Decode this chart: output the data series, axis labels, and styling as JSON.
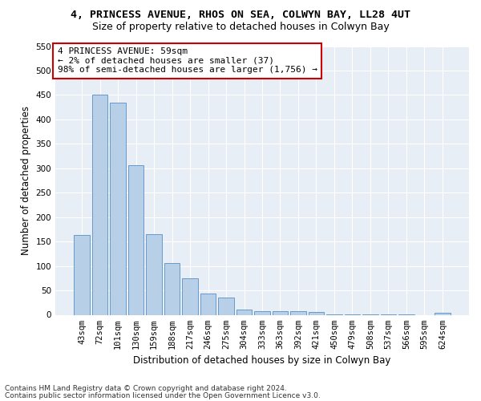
{
  "title": "4, PRINCESS AVENUE, RHOS ON SEA, COLWYN BAY, LL28 4UT",
  "subtitle": "Size of property relative to detached houses in Colwyn Bay",
  "xlabel": "Distribution of detached houses by size in Colwyn Bay",
  "ylabel": "Number of detached properties",
  "categories": [
    "43sqm",
    "72sqm",
    "101sqm",
    "130sqm",
    "159sqm",
    "188sqm",
    "217sqm",
    "246sqm",
    "275sqm",
    "304sqm",
    "333sqm",
    "363sqm",
    "392sqm",
    "421sqm",
    "450sqm",
    "479sqm",
    "508sqm",
    "537sqm",
    "566sqm",
    "595sqm",
    "624sqm"
  ],
  "values": [
    163,
    450,
    435,
    306,
    165,
    106,
    75,
    44,
    35,
    10,
    7,
    7,
    7,
    5,
    1,
    1,
    1,
    1,
    1,
    0,
    4
  ],
  "bar_color": "#b8cfe8",
  "bar_edge_color": "#6699cc",
  "annotation_box_text": "4 PRINCESS AVENUE: 59sqm\n← 2% of detached houses are smaller (37)\n98% of semi-detached houses are larger (1,756) →",
  "annotation_box_color": "#ffffff",
  "annotation_box_edge_color": "#cc0000",
  "footer_line1": "Contains HM Land Registry data © Crown copyright and database right 2024.",
  "footer_line2": "Contains public sector information licensed under the Open Government Licence v3.0.",
  "ylim": [
    0,
    550
  ],
  "yticks": [
    0,
    50,
    100,
    150,
    200,
    250,
    300,
    350,
    400,
    450,
    500,
    550
  ],
  "plot_bg_color": "#e8eef5",
  "title_fontsize": 9.5,
  "subtitle_fontsize": 9,
  "tick_fontsize": 7.5,
  "label_fontsize": 8.5,
  "annotation_fontsize": 8,
  "footer_fontsize": 6.5
}
